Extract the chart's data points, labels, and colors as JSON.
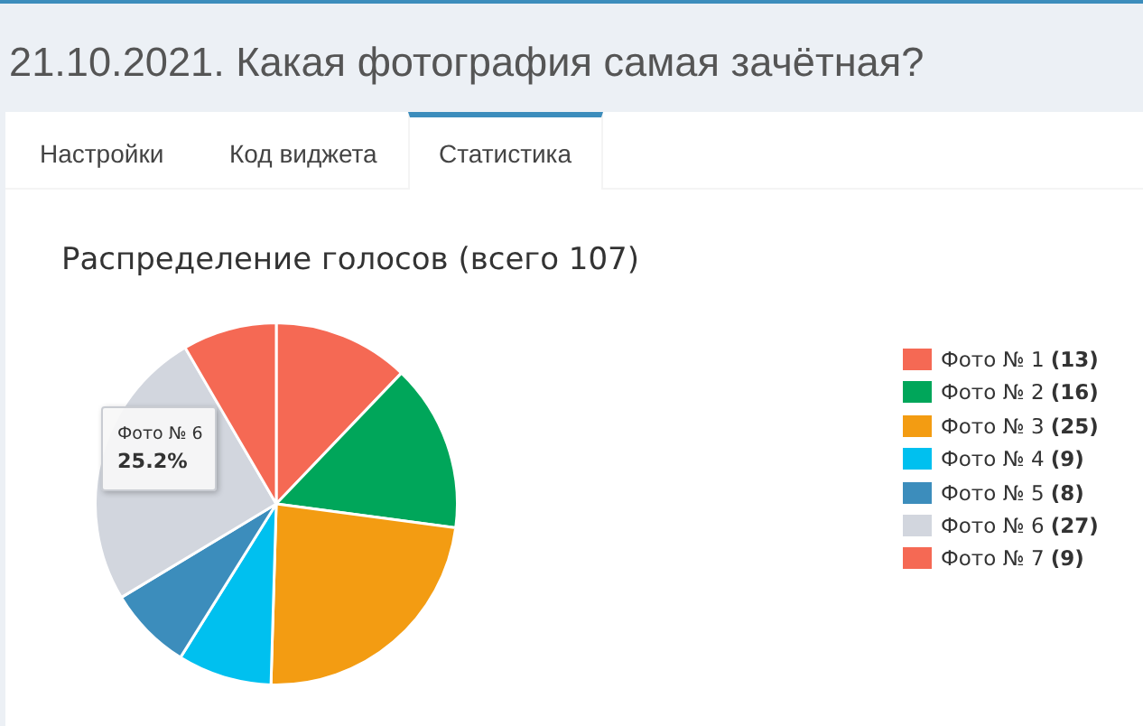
{
  "chart_data": {
    "type": "pie",
    "title": "21.10.2021. Какая фотография самая зачётная?",
    "subtitle": "Распределение голосов (всего 107)",
    "categories": [
      "Фото № 1",
      "Фото № 2",
      "Фото № 3",
      "Фото № 4",
      "Фото № 5",
      "Фото № 6",
      "Фото № 7"
    ],
    "values": [
      13,
      16,
      25,
      9,
      8,
      27,
      9
    ],
    "colors": [
      "#f56954",
      "#00a65a",
      "#f39c12",
      "#00c0ef",
      "#3c8dbc",
      "#d2d6de",
      "#f56954"
    ],
    "value_labels": [
      "(13)",
      "(16)",
      "(25)",
      "(9)",
      "(8)",
      "(27)",
      "(9)"
    ],
    "legend": "right",
    "annotations": [
      "Настройки",
      "Код виджета",
      "Статистика",
      {
        "text": "Фото № 6",
        "x": "Фото № 6"
      },
      {
        "text": "25.2%",
        "x": "Фото № 6"
      }
    ]
  }
}
